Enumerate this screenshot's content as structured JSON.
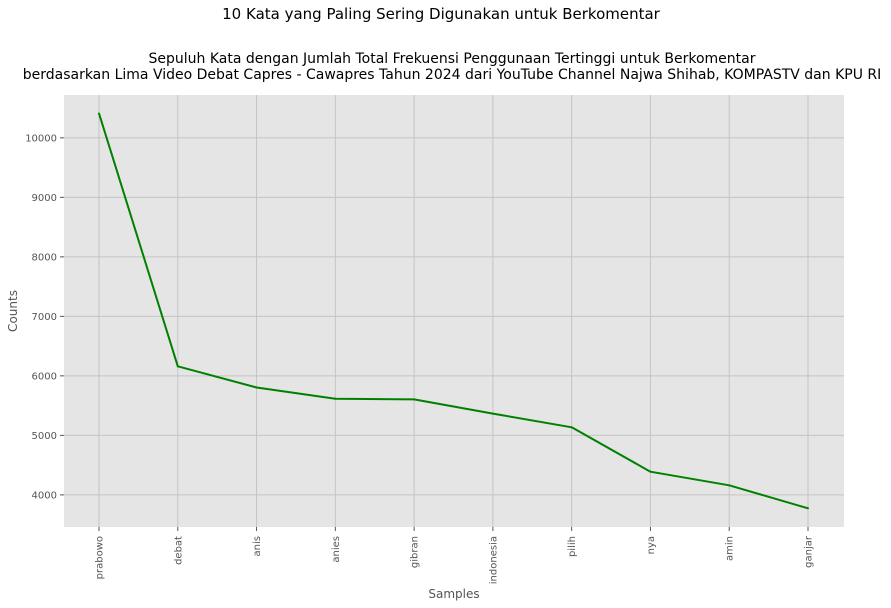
{
  "chart_data": {
    "type": "line",
    "suptitle": "10 Kata yang Paling Sering Digunakan untuk Berkomentar",
    "title_lines": [
      "Sepuluh Kata dengan Jumlah Total Frekuensi Penggunaan Tertinggi untuk Berkomentar",
      "berdasarkan Lima Video Debat Capres - Cawapres Tahun 2024 dari YouTube Channel Najwa Shihab, KOMPASTV dan KPU RI"
    ],
    "xlabel": "Samples",
    "ylabel": "Counts",
    "categories": [
      "prabowo",
      "debat",
      "anis",
      "anies",
      "gibran",
      "indonesia",
      "pilih",
      "nya",
      "amin",
      "ganjar"
    ],
    "values": [
      10410,
      6160,
      5805,
      5615,
      5605,
      5365,
      5135,
      4390,
      4160,
      3775
    ],
    "yticks": [
      4000,
      5000,
      6000,
      7000,
      8000,
      9000,
      10000
    ],
    "ylim": [
      3460,
      10720
    ],
    "line_color": "#008000",
    "grid": true,
    "background": "#e5e5e5"
  }
}
